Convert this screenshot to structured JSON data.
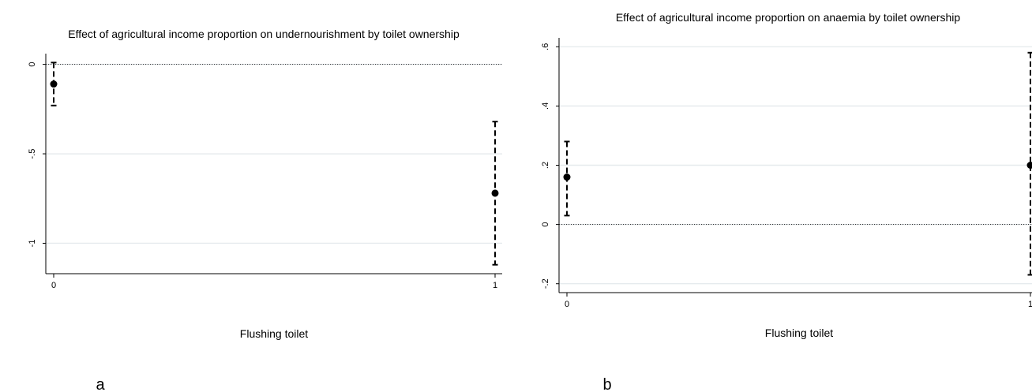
{
  "chart_data": [
    {
      "type": "scatter",
      "panel_letter": "a",
      "title": "Effect of agricultural income proportion on undernourishment by toilet ownership",
      "xlabel": "Flushing toilet",
      "ylabel": "",
      "xlim": [
        0,
        1
      ],
      "ylim": [
        -1.17,
        0.06
      ],
      "xticks": [
        0,
        1
      ],
      "xtick_labels": [
        "0",
        "1"
      ],
      "yticks": [
        0,
        -0.5,
        -1
      ],
      "ytick_labels": [
        "0",
        "-.5",
        "-1"
      ],
      "grid": true,
      "reference_line": 0,
      "points": [
        {
          "x": 0,
          "y": -0.11,
          "lower": -0.23,
          "upper": 0.01
        },
        {
          "x": 1,
          "y": -0.72,
          "lower": -1.12,
          "upper": -0.32
        }
      ]
    },
    {
      "type": "scatter",
      "panel_letter": "b",
      "title": "Effect of agricultural income proportion on anaemia by toilet ownership",
      "xlabel": "Flushing toilet",
      "ylabel": "",
      "xlim": [
        0,
        1
      ],
      "ylim": [
        -0.23,
        0.63
      ],
      "xticks": [
        0,
        1
      ],
      "xtick_labels": [
        "0",
        "1"
      ],
      "yticks": [
        0.6,
        0.4,
        0.2,
        0,
        -0.2
      ],
      "ytick_labels": [
        ".6",
        ".4",
        ".2",
        "0",
        "-.2"
      ],
      "grid": true,
      "reference_line": 0,
      "points": [
        {
          "x": 0,
          "y": 0.16,
          "lower": 0.03,
          "upper": 0.28
        },
        {
          "x": 1,
          "y": 0.2,
          "lower": -0.17,
          "upper": 0.58
        }
      ]
    }
  ]
}
